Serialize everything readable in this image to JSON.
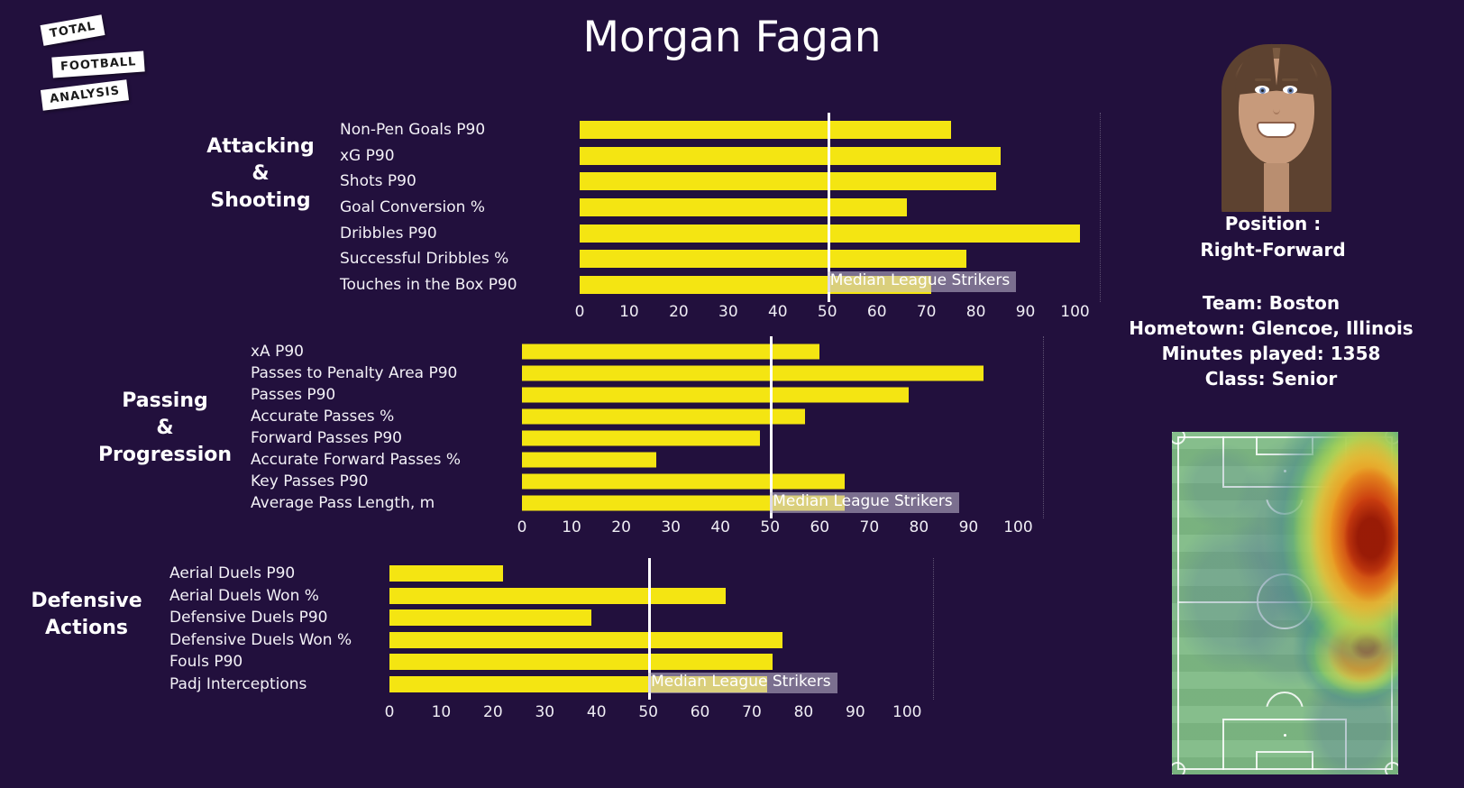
{
  "title": "Morgan Fagan",
  "logo": {
    "lines": [
      "Total",
      "Football",
      "Analysis"
    ]
  },
  "player": {
    "position_label": "Position :",
    "position_value": "Right-Forward",
    "info_lines": [
      "Team: Boston",
      "Hometown: Glencoe, Illinois",
      "Minutes played: 1358",
      "Class: Senior"
    ]
  },
  "median_label": "Median League Strikers",
  "colors": {
    "background": "#22103d",
    "bar": "#f4e512",
    "median_line": "#ffffff",
    "median_label_bg": "rgba(196,190,212,0.55)",
    "pitch_green": "#7fbb86",
    "heat_hot": "#961906",
    "heat_warm": "#ee941d"
  },
  "chart_data": [
    {
      "type": "bar",
      "orientation": "horizontal",
      "section_title": [
        "Attacking",
        "&",
        "Shooting"
      ],
      "categories": [
        "Non-Pen Goals P90",
        "xG P90",
        "Shots P90",
        "Goal Conversion %",
        "Dribbles P90",
        "Successful Dribbles %",
        "Touches in the Box P90"
      ],
      "values": [
        75,
        85,
        84,
        66,
        101,
        78,
        71
      ],
      "xlim": [
        0,
        105
      ],
      "xticks": [
        0,
        10,
        20,
        30,
        40,
        50,
        60,
        70,
        80,
        90,
        100
      ],
      "median_line": 50,
      "grid": false,
      "legend": "median label overlaps last bar"
    },
    {
      "type": "bar",
      "orientation": "horizontal",
      "section_title": [
        "Passing",
        "&",
        "Progression"
      ],
      "categories": [
        "xA P90",
        "Passes to Penalty Area P90",
        "Passes P90",
        "Accurate Passes %",
        "Forward Passes P90",
        "Accurate Forward Passes %",
        "Key Passes P90",
        "Average Pass Length, m"
      ],
      "values": [
        60,
        93,
        78,
        57,
        48,
        27,
        65,
        65
      ],
      "xlim": [
        0,
        105
      ],
      "xticks": [
        0,
        10,
        20,
        30,
        40,
        50,
        60,
        70,
        80,
        90,
        100
      ],
      "median_line": 50,
      "grid": false,
      "legend": "median label overlaps last bar"
    },
    {
      "type": "bar",
      "orientation": "horizontal",
      "section_title": [
        "Defensive",
        "Actions"
      ],
      "categories": [
        "Aerial Duels P90",
        "Aerial Duels Won %",
        "Defensive Duels P90",
        "Defensive Duels Won %",
        "Fouls P90",
        "Padj Interceptions"
      ],
      "values": [
        22,
        65,
        39,
        76,
        74,
        73
      ],
      "xlim": [
        0,
        105
      ],
      "xticks": [
        0,
        10,
        20,
        30,
        40,
        50,
        60,
        70,
        80,
        90,
        100
      ],
      "median_line": 50,
      "grid": false,
      "legend": "median label overlaps last bar"
    },
    {
      "type": "heatmap",
      "title": "Player activity heatmap",
      "description": "Vertical green football pitch; activity concentrated on the right wing of the attacking half with a large red hot zone, and a second orange zone on the right just below the halfway line"
    }
  ]
}
